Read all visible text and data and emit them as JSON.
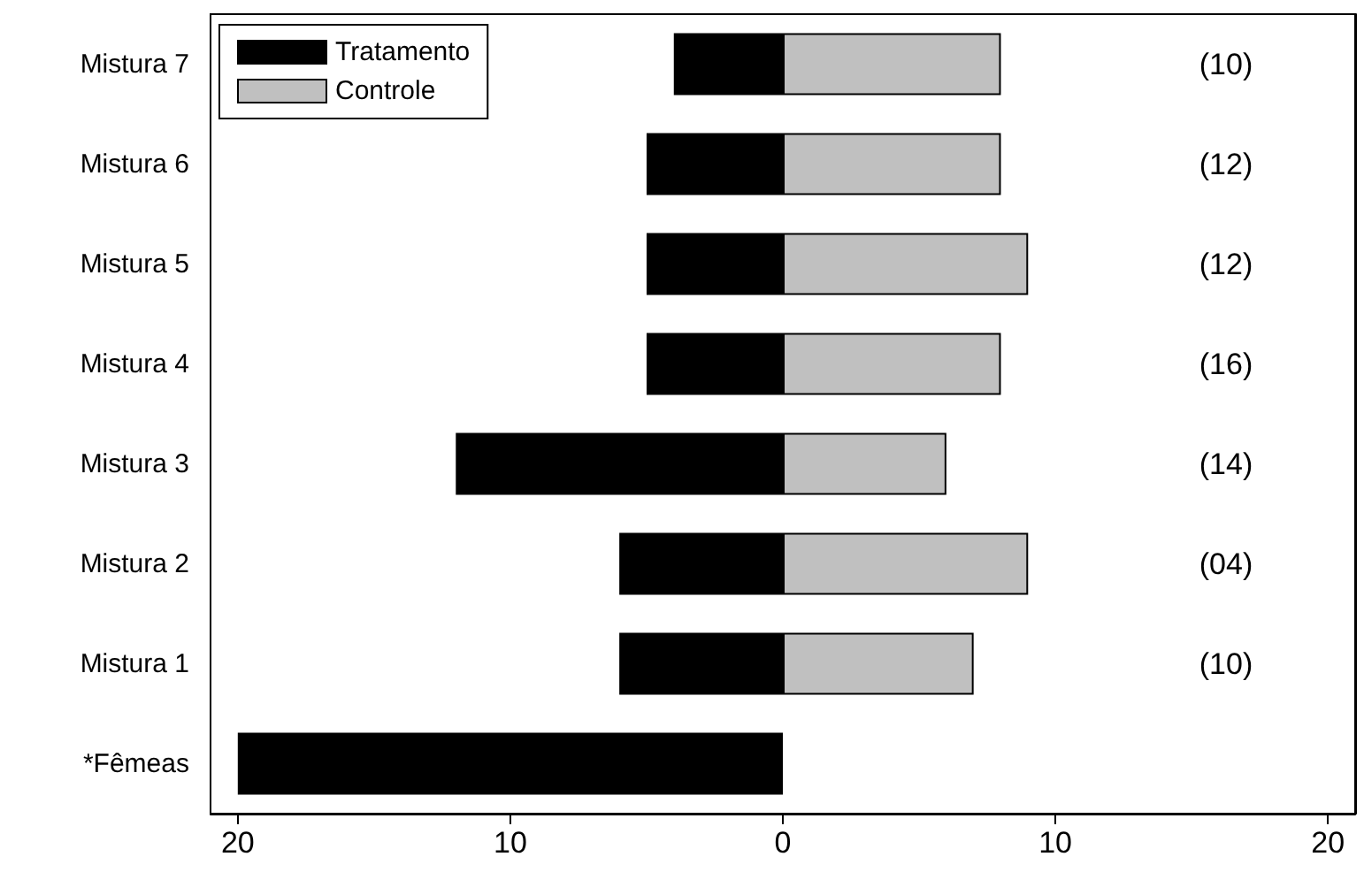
{
  "chart_data": {
    "type": "bar",
    "orientation": "horizontal",
    "stacked": true,
    "categories": [
      "Mistura 7",
      "Mistura 6",
      "Mistura 5",
      "Mistura 4",
      "Mistura 3",
      "Mistura 2",
      "Mistura 1",
      "*Fêmeas"
    ],
    "series": [
      {
        "name": "Tratamento",
        "color": "#000000",
        "values": [
          -4,
          -5,
          -5,
          -5,
          -12,
          -6,
          -6,
          -20
        ]
      },
      {
        "name": "Controle",
        "color": "#c0c0c0",
        "values": [
          8,
          8,
          9,
          8,
          6,
          9,
          7,
          null
        ]
      }
    ],
    "xlim": [
      -21,
      21
    ],
    "xticks": [
      {
        "value": -20,
        "label": "20"
      },
      {
        "value": -10,
        "label": "10"
      },
      0,
      10,
      20
    ],
    "annotations": [
      "(10)",
      "(12)",
      "(12)",
      "(16)",
      "(14)",
      "(04)",
      "(10)"
    ],
    "legend": "top left",
    "grid": false
  }
}
